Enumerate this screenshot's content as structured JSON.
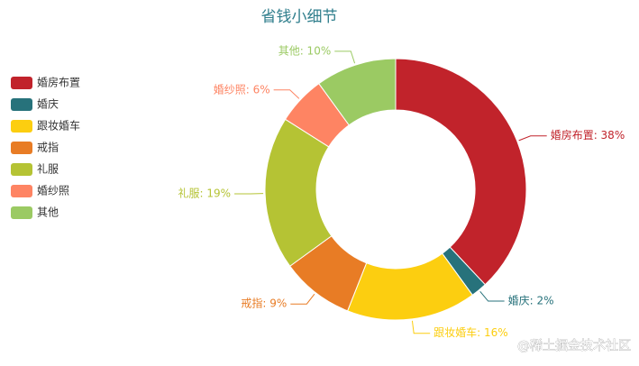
{
  "chart_data": {
    "type": "donut",
    "title": "省钱小细节",
    "categories": [
      "婚房布置",
      "婚庆",
      "跟妆婚车",
      "戒指",
      "礼服",
      "婚纱照",
      "其他"
    ],
    "values": [
      38,
      2,
      16,
      9,
      19,
      6,
      10
    ],
    "value_labels": [
      "婚房布置: 38%",
      "婚庆: 2%",
      "跟妆婚车: 16%",
      "戒指: 9%",
      "礼服: 19%",
      "婚纱照: 6%",
      "其他: 10%"
    ],
    "colors": [
      "#c1232b",
      "#27727b",
      "#fcce10",
      "#e87c25",
      "#b5c334",
      "#fe8463",
      "#9bca63"
    ],
    "legend": "left",
    "watermark": "@稀土掘金技术社区"
  }
}
